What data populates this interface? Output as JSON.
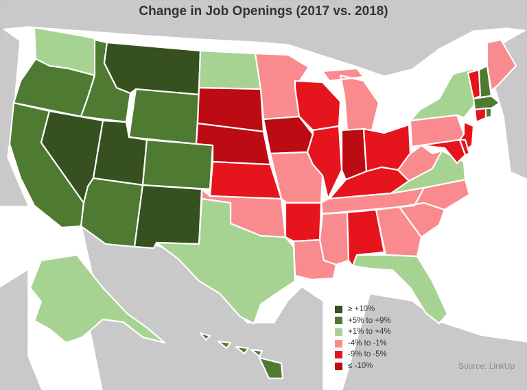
{
  "title": "Change in Job Openings (2017 vs. 2018)",
  "source": "Source: LinkUp",
  "colors": {
    "ge10": "#36501f",
    "p5to9": "#4f7a32",
    "p1to4": "#a6d392",
    "m4to1": "#f98b8f",
    "m9to5": "#e6141c",
    "le10": "#bc0b13",
    "neighbor": "#c9c9c9"
  },
  "legend": [
    {
      "label": "≥ +10%",
      "color": "#36501f"
    },
    {
      "label": "+5% to +9%",
      "color": "#4f7a32"
    },
    {
      "label": "+1% to +4%",
      "color": "#a6d392"
    },
    {
      "label": "-4% to -1%",
      "color": "#f98b8f"
    },
    {
      "label": "-9% to -5%",
      "color": "#e6141c"
    },
    {
      "label": "≤ -10%",
      "color": "#bc0b13"
    }
  ],
  "states": {
    "WA": "+1% to +4%",
    "OR": "+5% to +9%",
    "CA": "+5% to +9%",
    "ID": "+5% to +9%",
    "NV": "≥ +10%",
    "MT": "≥ +10%",
    "WY": "+5% to +9%",
    "UT": "≥ +10%",
    "AZ": "+5% to +9%",
    "CO": "+5% to +9%",
    "NM": "≥ +10%",
    "ND": "+1% to +4%",
    "SD": "≤ -10%",
    "NE": "≤ -10%",
    "KS": "-9% to -5%",
    "OK": "-4% to -1%",
    "TX": "+1% to +4%",
    "MN": "-4% to -1%",
    "IA": "≤ -10%",
    "MO": "-4% to -1%",
    "AR": "-9% to -5%",
    "LA": "-4% to -1%",
    "WI": "-9% to -5%",
    "IL": "-9% to -5%",
    "MI": "-4% to -1%",
    "IN": "≤ -10%",
    "OH": "-9% to -5%",
    "KY": "-9% to -5%",
    "TN": "-4% to -1%",
    "MS": "-4% to -1%",
    "AL": "-9% to -5%",
    "GA": "-4% to -1%",
    "FL": "+1% to +4%",
    "SC": "-4% to -1%",
    "NC": "-4% to -1%",
    "VA": "+1% to +4%",
    "WV": "-4% to -1%",
    "PA": "-4% to -1%",
    "NY": "+1% to +4%",
    "NJ": "-9% to -5%",
    "MD": "-9% to -5%",
    "DE": "-9% to -5%",
    "VT": "-9% to -5%",
    "NH": "+5% to +9%",
    "ME": "-4% to -1%",
    "MA": "+5% to +9%",
    "CT": "-9% to -5%",
    "RI": "+5% to +9%",
    "AK": "+1% to +4%",
    "HI": "+5% to +9%"
  }
}
